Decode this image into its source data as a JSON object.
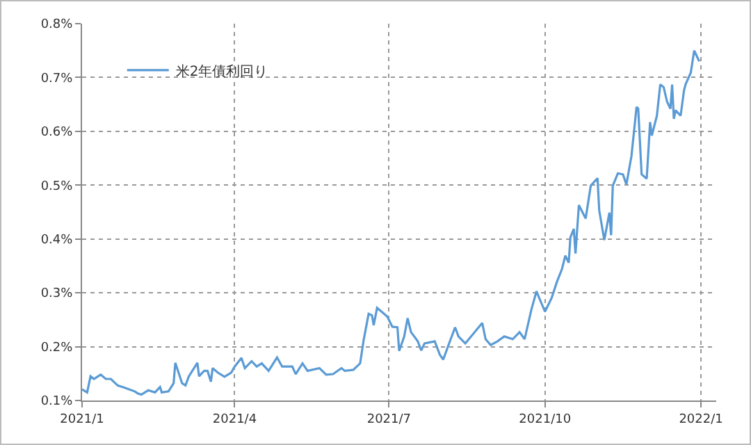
{
  "chart_data": {
    "type": "line",
    "legend": "top left",
    "grid": true,
    "line_style": "solid",
    "marker": "none",
    "xlim": [
      "2021-01-01",
      "2022-01-10"
    ],
    "xticks": [
      {
        "value": "2021-01-01",
        "label": "2021/1"
      },
      {
        "value": "2021-04-01",
        "label": "2021/4"
      },
      {
        "value": "2021-07-01",
        "label": "2021/7"
      },
      {
        "value": "2021-10-01",
        "label": "2021/10"
      },
      {
        "value": "2022-01-01",
        "label": "2022/1"
      }
    ],
    "ylim": [
      0.1,
      0.8
    ],
    "yticks": [
      {
        "value": 0.1,
        "label": "0.1%"
      },
      {
        "value": 0.2,
        "label": "0.2%"
      },
      {
        "value": 0.3,
        "label": "0.3%"
      },
      {
        "value": 0.4,
        "label": "0.4%"
      },
      {
        "value": 0.5,
        "label": "0.5%"
      },
      {
        "value": 0.6,
        "label": "0.6%"
      },
      {
        "value": 0.7,
        "label": "0.7%"
      },
      {
        "value": 0.8,
        "label": "0.8%"
      }
    ],
    "x": [
      "2021-01-01",
      "2021-01-04",
      "2021-01-06",
      "2021-01-08",
      "2021-01-12",
      "2021-01-15",
      "2021-01-18",
      "2021-01-22",
      "2021-01-26",
      "2021-02-01",
      "2021-02-03",
      "2021-02-05",
      "2021-02-09",
      "2021-02-13",
      "2021-02-16",
      "2021-02-17",
      "2021-02-21",
      "2021-02-24",
      "2021-02-25",
      "2021-03-01",
      "2021-03-03",
      "2021-03-05",
      "2021-03-10",
      "2021-03-11",
      "2021-03-14",
      "2021-03-16",
      "2021-03-18",
      "2021-03-19",
      "2021-03-22",
      "2021-03-26",
      "2021-03-30",
      "2021-04-01",
      "2021-04-05",
      "2021-04-07",
      "2021-04-11",
      "2021-04-14",
      "2021-04-17",
      "2021-04-21",
      "2021-04-26",
      "2021-04-29",
      "2021-05-05",
      "2021-05-07",
      "2021-05-11",
      "2021-05-14",
      "2021-05-21",
      "2021-05-25",
      "2021-05-29",
      "2021-06-03",
      "2021-06-05",
      "2021-06-10",
      "2021-06-14",
      "2021-06-16",
      "2021-06-19",
      "2021-06-21",
      "2021-06-22",
      "2021-06-24",
      "2021-06-30",
      "2021-07-03",
      "2021-07-06",
      "2021-07-07",
      "2021-07-10",
      "2021-07-12",
      "2021-07-14",
      "2021-07-18",
      "2021-07-20",
      "2021-07-22",
      "2021-07-28",
      "2021-07-31",
      "2021-08-02",
      "2021-08-05",
      "2021-08-09",
      "2021-08-11",
      "2021-08-15",
      "2021-08-20",
      "2021-08-25",
      "2021-08-27",
      "2021-08-30",
      "2021-09-03",
      "2021-09-07",
      "2021-09-12",
      "2021-09-16",
      "2021-09-19",
      "2021-09-23",
      "2021-09-26",
      "2021-09-27",
      "2021-10-01",
      "2021-10-05",
      "2021-10-08",
      "2021-10-11",
      "2021-10-13",
      "2021-10-15",
      "2021-10-16",
      "2021-10-18",
      "2021-10-19",
      "2021-10-21",
      "2021-10-25",
      "2021-10-28",
      "2021-11-01",
      "2021-11-02",
      "2021-11-05",
      "2021-11-08",
      "2021-11-09",
      "2021-11-10",
      "2021-11-13",
      "2021-11-16",
      "2021-11-18",
      "2021-11-21",
      "2021-11-24",
      "2021-11-25",
      "2021-11-27",
      "2021-11-30",
      "2021-12-02",
      "2021-12-03",
      "2021-12-06",
      "2021-12-08",
      "2021-12-10",
      "2021-12-12",
      "2021-12-14",
      "2021-12-15",
      "2021-12-16",
      "2021-12-17",
      "2021-12-20",
      "2021-12-22",
      "2021-12-23",
      "2021-12-26",
      "2021-12-28",
      "2021-12-31"
    ],
    "series": [
      {
        "name": "米2年債利回り",
        "color": "#5b9bd5",
        "values": [
          0.121,
          0.115,
          0.145,
          0.14,
          0.148,
          0.14,
          0.14,
          0.128,
          0.124,
          0.117,
          0.113,
          0.111,
          0.119,
          0.115,
          0.125,
          0.115,
          0.117,
          0.132,
          0.17,
          0.132,
          0.128,
          0.145,
          0.17,
          0.145,
          0.155,
          0.155,
          0.135,
          0.16,
          0.152,
          0.144,
          0.152,
          0.163,
          0.179,
          0.16,
          0.173,
          0.163,
          0.169,
          0.155,
          0.18,
          0.163,
          0.163,
          0.149,
          0.169,
          0.155,
          0.16,
          0.148,
          0.149,
          0.16,
          0.155,
          0.157,
          0.169,
          0.211,
          0.261,
          0.258,
          0.24,
          0.272,
          0.256,
          0.237,
          0.236,
          0.192,
          0.219,
          0.253,
          0.227,
          0.21,
          0.193,
          0.206,
          0.21,
          0.185,
          0.176,
          0.202,
          0.236,
          0.219,
          0.206,
          0.225,
          0.244,
          0.214,
          0.203,
          0.21,
          0.219,
          0.214,
          0.227,
          0.214,
          0.269,
          0.303,
          0.295,
          0.265,
          0.291,
          0.32,
          0.344,
          0.369,
          0.356,
          0.403,
          0.419,
          0.373,
          0.463,
          0.438,
          0.499,
          0.513,
          0.453,
          0.398,
          0.449,
          0.407,
          0.499,
          0.522,
          0.52,
          0.501,
          0.554,
          0.645,
          0.642,
          0.52,
          0.512,
          0.617,
          0.592,
          0.629,
          0.687,
          0.682,
          0.655,
          0.642,
          0.687,
          0.623,
          0.639,
          0.629,
          0.676,
          0.688,
          0.709,
          0.75,
          0.73
        ]
      }
    ]
  }
}
